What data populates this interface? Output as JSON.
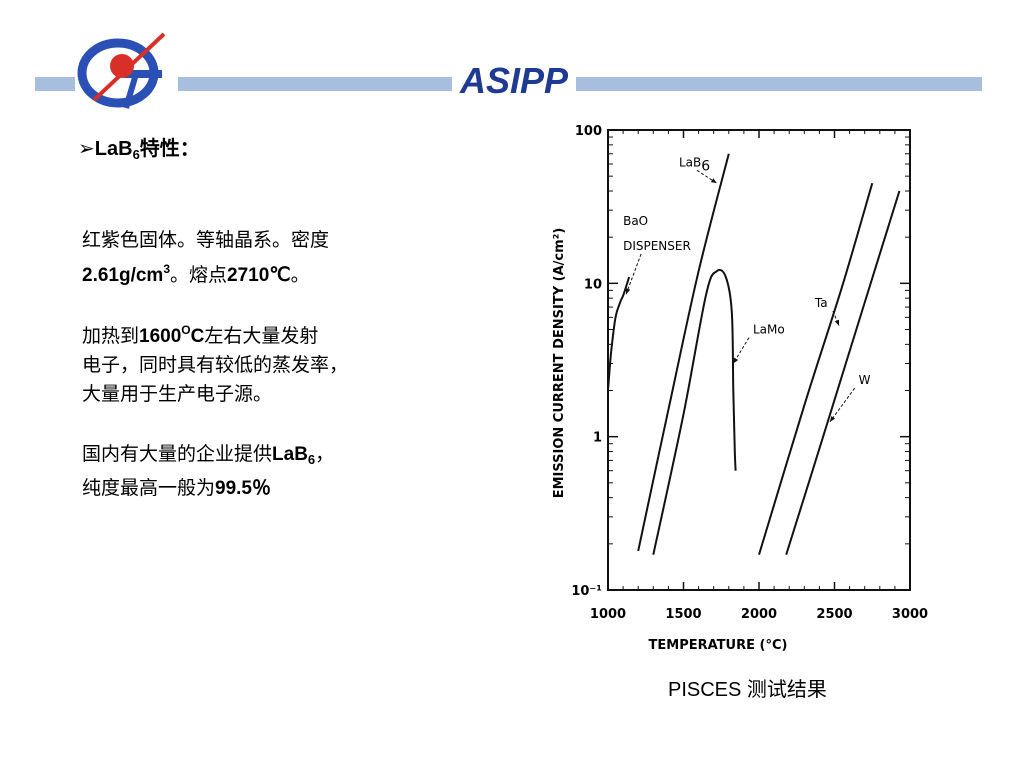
{
  "header": {
    "brand": "ASIPP",
    "colors": {
      "bar": "#a7bedf",
      "brand": "#1f3a93",
      "logo_blue": "#2a4fb5",
      "logo_red": "#d83028"
    }
  },
  "content": {
    "heading_marker": "➢",
    "heading_main": "LaB",
    "heading_sub": "6",
    "heading_tail": "特性：",
    "p1_line1": "红紫色固体。等轴晶系。密度",
    "p1_line2_a": "2.61g/cm",
    "p1_line2_sup": "3",
    "p1_line2_b": "。熔点",
    "p1_line2_c": "2710℃",
    "p1_line2_d": "。",
    "p2_line1_a": "加热到",
    "p2_line1_b": "1600",
    "p2_line1_sup": "O",
    "p2_line1_c": "C",
    "p2_line1_d": "左右大量发射",
    "p2_line2": "电子，同时具有较低的蒸发率，",
    "p2_line3": "大量用于生产电子源。",
    "p3_line1_a": "国内有大量的企业提供",
    "p3_line1_b": "LaB",
    "p3_line1_sub": "6",
    "p3_line1_c": "，",
    "p3_line2_a": "纯度最高一般为",
    "p3_line2_b": "99.5％"
  },
  "caption": "PISCES 测试结果",
  "chart_data": {
    "type": "line",
    "title": "",
    "xlabel": "TEMPERATURE (°C)",
    "ylabel": "EMISSION CURRENT DENSITY (A/cm²)",
    "xlim": [
      1000,
      3000
    ],
    "ylim": [
      0.1,
      100
    ],
    "yscale": "log",
    "x_ticks": [
      "1000",
      "1500",
      "2000",
      "2500",
      "3000"
    ],
    "y_ticks": [
      "10⁻¹",
      "1",
      "10",
      "100"
    ],
    "grid": false,
    "series": [
      {
        "name": "BaO DISPENSER",
        "x": [
          1000,
          1020,
          1050,
          1080,
          1100,
          1120,
          1140
        ],
        "y": [
          2.0,
          3.5,
          6.0,
          7.5,
          8.3,
          9.5,
          11.0
        ]
      },
      {
        "name": "LaB6",
        "x": [
          1200,
          1400,
          1600,
          1800
        ],
        "y": [
          0.18,
          1.5,
          12,
          70
        ]
      },
      {
        "name": "LaMo",
        "x": [
          1300,
          1500,
          1650,
          1720,
          1780,
          1820,
          1830,
          1840,
          1845
        ],
        "y": [
          0.17,
          1.4,
          8.5,
          12.0,
          11.0,
          6.5,
          2.0,
          0.8,
          0.6
        ]
      },
      {
        "name": "Ta",
        "x": [
          2000,
          2300,
          2550,
          2750
        ],
        "y": [
          0.17,
          1.6,
          9.5,
          45
        ]
      },
      {
        "name": "W",
        "x": [
          2180,
          2450,
          2700,
          2930
        ],
        "y": [
          0.17,
          1.2,
          7.5,
          40
        ]
      }
    ],
    "labels": [
      {
        "text": "LaB6",
        "base": "LaB",
        "sub": "6",
        "x": 1470,
        "y": 58,
        "arrow_to": [
          1720,
          45
        ]
      },
      {
        "text": "BaO",
        "x": 1100,
        "y": 24
      },
      {
        "text": "DISPENSER",
        "x": 1100,
        "y": 16.5,
        "arrow_to": [
          1120,
          8.5
        ]
      },
      {
        "text": "Ta",
        "x": 2370,
        "y": 7.0,
        "arrow_to": [
          2530,
          5.3
        ]
      },
      {
        "text": "LaMo",
        "x": 1960,
        "y": 4.7,
        "arrow_to": [
          1830,
          3.0
        ]
      },
      {
        "text": "W",
        "x": 2660,
        "y": 2.2,
        "arrow_to": [
          2470,
          1.25
        ]
      }
    ]
  }
}
